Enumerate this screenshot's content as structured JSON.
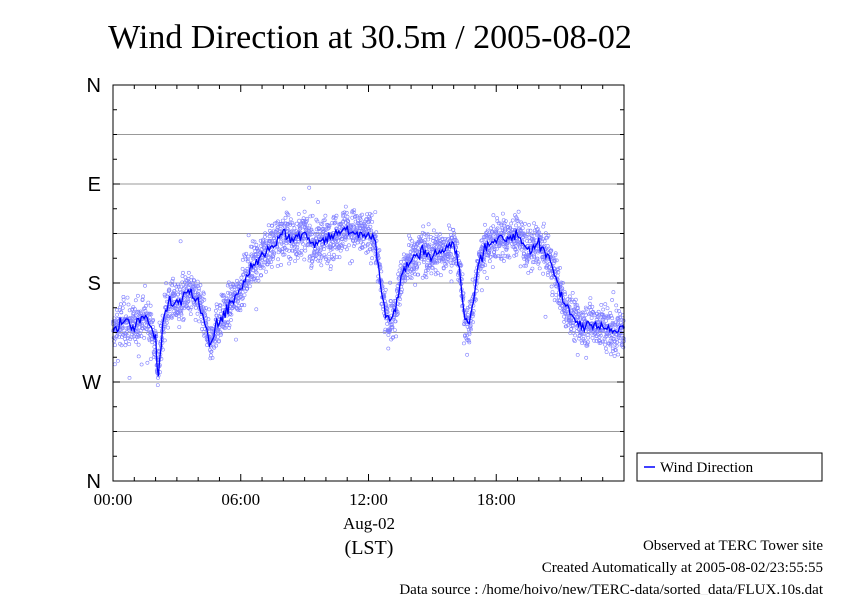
{
  "chart_data": {
    "type": "scatter",
    "title": "Wind Direction at 30.5m / 2005-08-02",
    "y_ticks": [
      "N",
      "W",
      "S",
      "E",
      "N"
    ],
    "y_range": [
      0,
      360
    ],
    "x_ticks": [
      "00:00",
      "06:00",
      "12:00",
      "18:00"
    ],
    "x_range_hours": [
      0,
      24
    ],
    "date_label": "Aug-02",
    "x_unit_label": "(LST)",
    "grid": true,
    "legend_position": "right",
    "series": [
      {
        "name": "Wind Direction",
        "color": "#0000ff",
        "style": "line",
        "x": [
          0.0,
          0.5,
          1.0,
          1.5,
          2.0,
          2.1,
          2.4,
          2.7,
          3.0,
          3.5,
          4.0,
          4.4,
          4.6,
          4.8,
          5.0,
          5.5,
          6.0,
          6.5,
          7.0,
          7.5,
          8.0,
          8.5,
          9.0,
          9.5,
          10.0,
          10.5,
          11.0,
          11.5,
          12.0,
          12.3,
          12.6,
          12.8,
          13.0,
          13.3,
          13.6,
          14.0,
          14.5,
          15.0,
          15.5,
          16.0,
          16.3,
          16.5,
          16.7,
          16.9,
          17.2,
          17.5,
          18.0,
          18.5,
          19.0,
          19.5,
          20.0,
          20.5,
          20.8,
          21.2,
          21.6,
          22.0,
          22.5,
          23.0,
          23.5,
          24.0
        ],
        "y": [
          135,
          145,
          140,
          150,
          130,
          95,
          150,
          165,
          160,
          170,
          165,
          140,
          125,
          140,
          145,
          160,
          175,
          195,
          205,
          215,
          225,
          220,
          225,
          215,
          220,
          225,
          230,
          225,
          225,
          220,
          175,
          150,
          145,
          160,
          190,
          200,
          210,
          205,
          210,
          215,
          190,
          150,
          140,
          160,
          200,
          215,
          220,
          220,
          225,
          210,
          215,
          200,
          185,
          160,
          150,
          140,
          145,
          140,
          135,
          140
        ]
      }
    ],
    "scatter_note": "Dense blue circle markers around the line"
  },
  "legend": {
    "label": "Wind Direction"
  },
  "footer": {
    "line1": "Observed at TERC Tower site",
    "line2": "Created Automatically at 2005-08-02/23:55:55",
    "line3": "Data source : /home/hoivo/new/TERC-data/sorted_data/FLUX.10s.dat"
  },
  "colors": {
    "series": "#0000ff",
    "scatter": "#7f7fff",
    "grid": "#999999",
    "axis": "#000000"
  }
}
